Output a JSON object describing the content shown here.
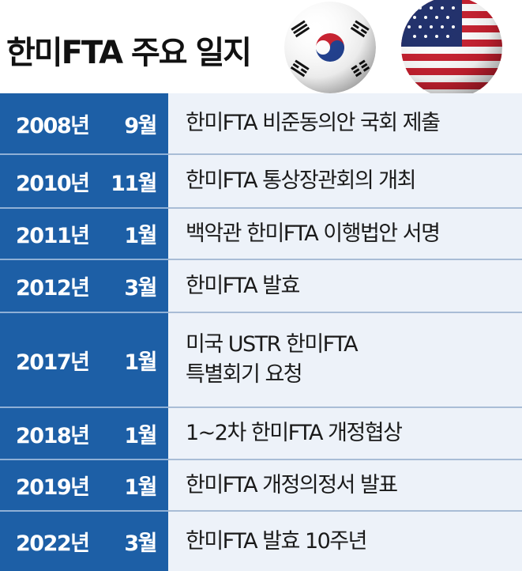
{
  "header": {
    "title": "한미FTA 주요 일지"
  },
  "table": {
    "rows": [
      {
        "year": "2008년",
        "month": "9월",
        "event": [
          "한미FTA 비준동의안 국회 제출"
        ]
      },
      {
        "year": "2010년",
        "month": "11월",
        "event": [
          "한미FTA 통상장관회의 개최"
        ]
      },
      {
        "year": "2011년",
        "month": "1월",
        "event": [
          "백악관 한미FTA 이행법안 서명"
        ]
      },
      {
        "year": "2012년",
        "month": "3월",
        "event": [
          "한미FTA 발효"
        ]
      },
      {
        "year": "2017년",
        "month": "1월",
        "event": [
          "미국 USTR 한미FTA",
          "특별회기 요청"
        ]
      },
      {
        "year": "2018년",
        "month": "1월",
        "event": [
          "1~2차 한미FTA 개정협상"
        ]
      },
      {
        "year": "2019년",
        "month": "1월",
        "event": [
          "한미FTA 개정의정서 발표"
        ]
      },
      {
        "year": "2022년",
        "month": "3월",
        "event": [
          "한미FTA 발효 10주년"
        ]
      }
    ]
  }
}
